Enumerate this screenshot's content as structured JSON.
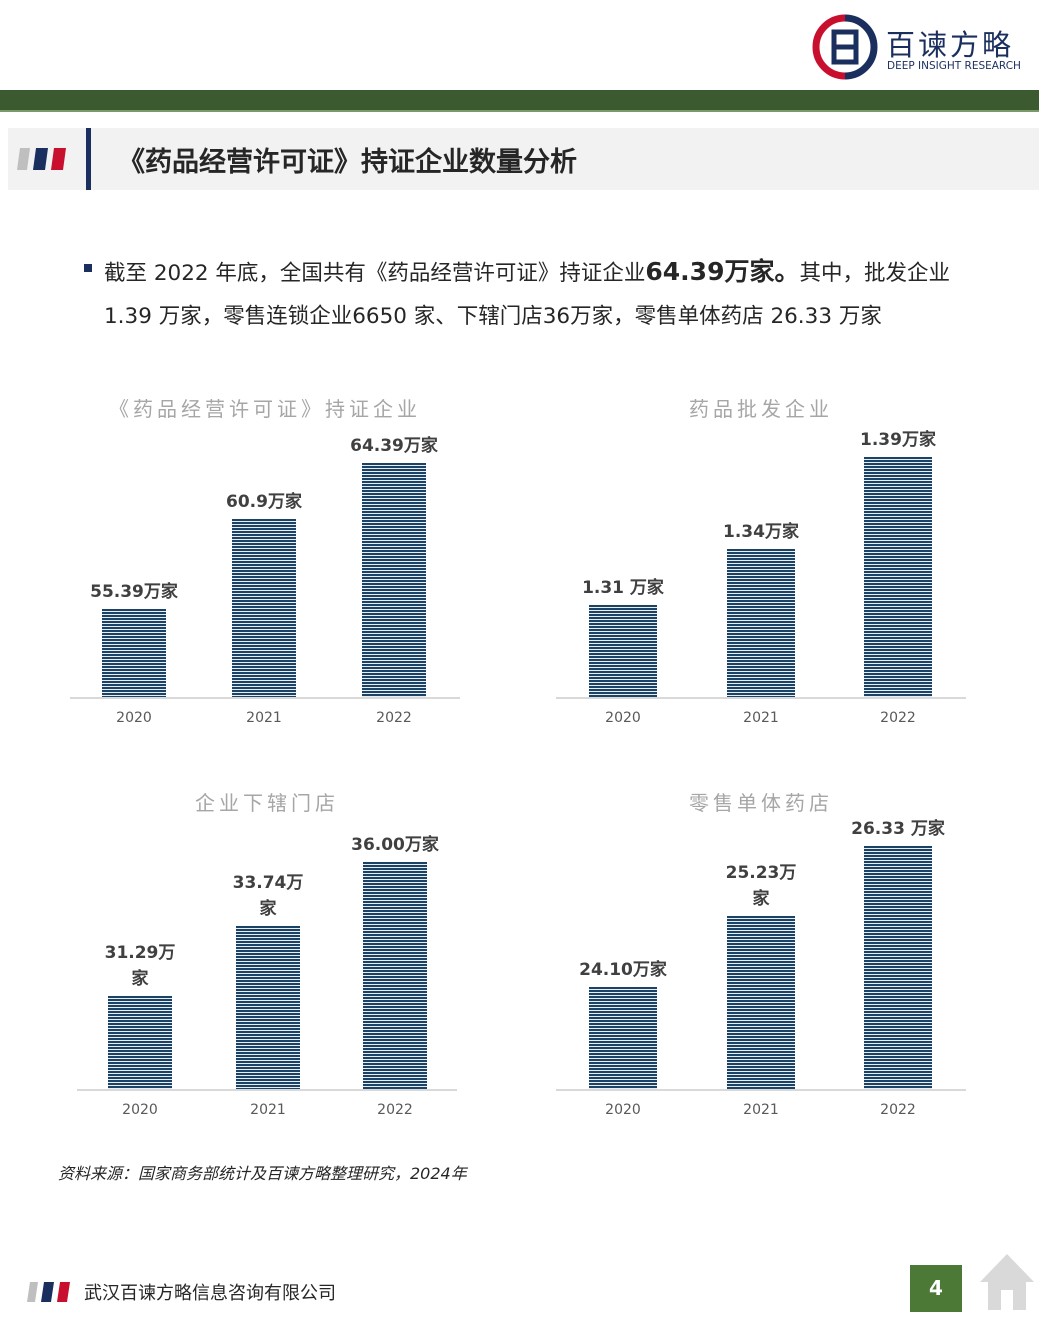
{
  "header": {
    "brand": "百谏方略",
    "brand_en": "DEEP INSIGHT RESEARCH"
  },
  "section_title": "《药品经营许可证》持证企业数量分析",
  "bullet": {
    "parts": [
      "截至 2022 年底，全国共有《药品经营许可证》持证企业",
      "64.39万家。",
      "其中，批发企业 1.39 万家，零售连锁企业6650 家、下辖门店36万家，零售单体药店 26.33 万家"
    ]
  },
  "chart_data": [
    {
      "type": "bar",
      "title": "《药品经营许可证》持证企业",
      "categories": [
        "2020",
        "2021",
        "2022"
      ],
      "values": [
        55.39,
        60.9,
        64.39
      ],
      "value_labels": [
        "55.39万家",
        "60.9万家",
        "64.39万家"
      ],
      "color": "#1b4366",
      "ylim": [
        50,
        67
      ]
    },
    {
      "type": "bar",
      "title": "药品批发企业",
      "categories": [
        "2020",
        "2021",
        "2022"
      ],
      "values": [
        1.31,
        1.34,
        1.39
      ],
      "value_labels": [
        "1.31 万家",
        "1.34万家",
        "1.39万家"
      ],
      "color": "#1b4366",
      "ylim": [
        1.26,
        1.41
      ]
    },
    {
      "type": "bar",
      "title": "企业下辖门店",
      "categories": [
        "2020",
        "2021",
        "2022"
      ],
      "values": [
        31.29,
        33.74,
        36
      ],
      "value_labels": [
        "31.29万家",
        "33.74万家",
        "36.00万家"
      ],
      "color": "#1b4366",
      "ylim": [
        28,
        37.5
      ]
    },
    {
      "type": "bar",
      "title": "零售单体药店",
      "categories": [
        "2020",
        "2021",
        "2022"
      ],
      "values": [
        24.1,
        25.23,
        26.33
      ],
      "value_labels": [
        "24.10万家",
        "25.23万家",
        "26.33 万家"
      ],
      "color": "#1b4366",
      "ylim": [
        22.5,
        26.8
      ]
    }
  ],
  "source": "资料来源：国家商务部统计及百谏方略整理研究，2024年",
  "footer": {
    "company": "武汉百谏方略信息咨询有限公司",
    "page": 4
  }
}
